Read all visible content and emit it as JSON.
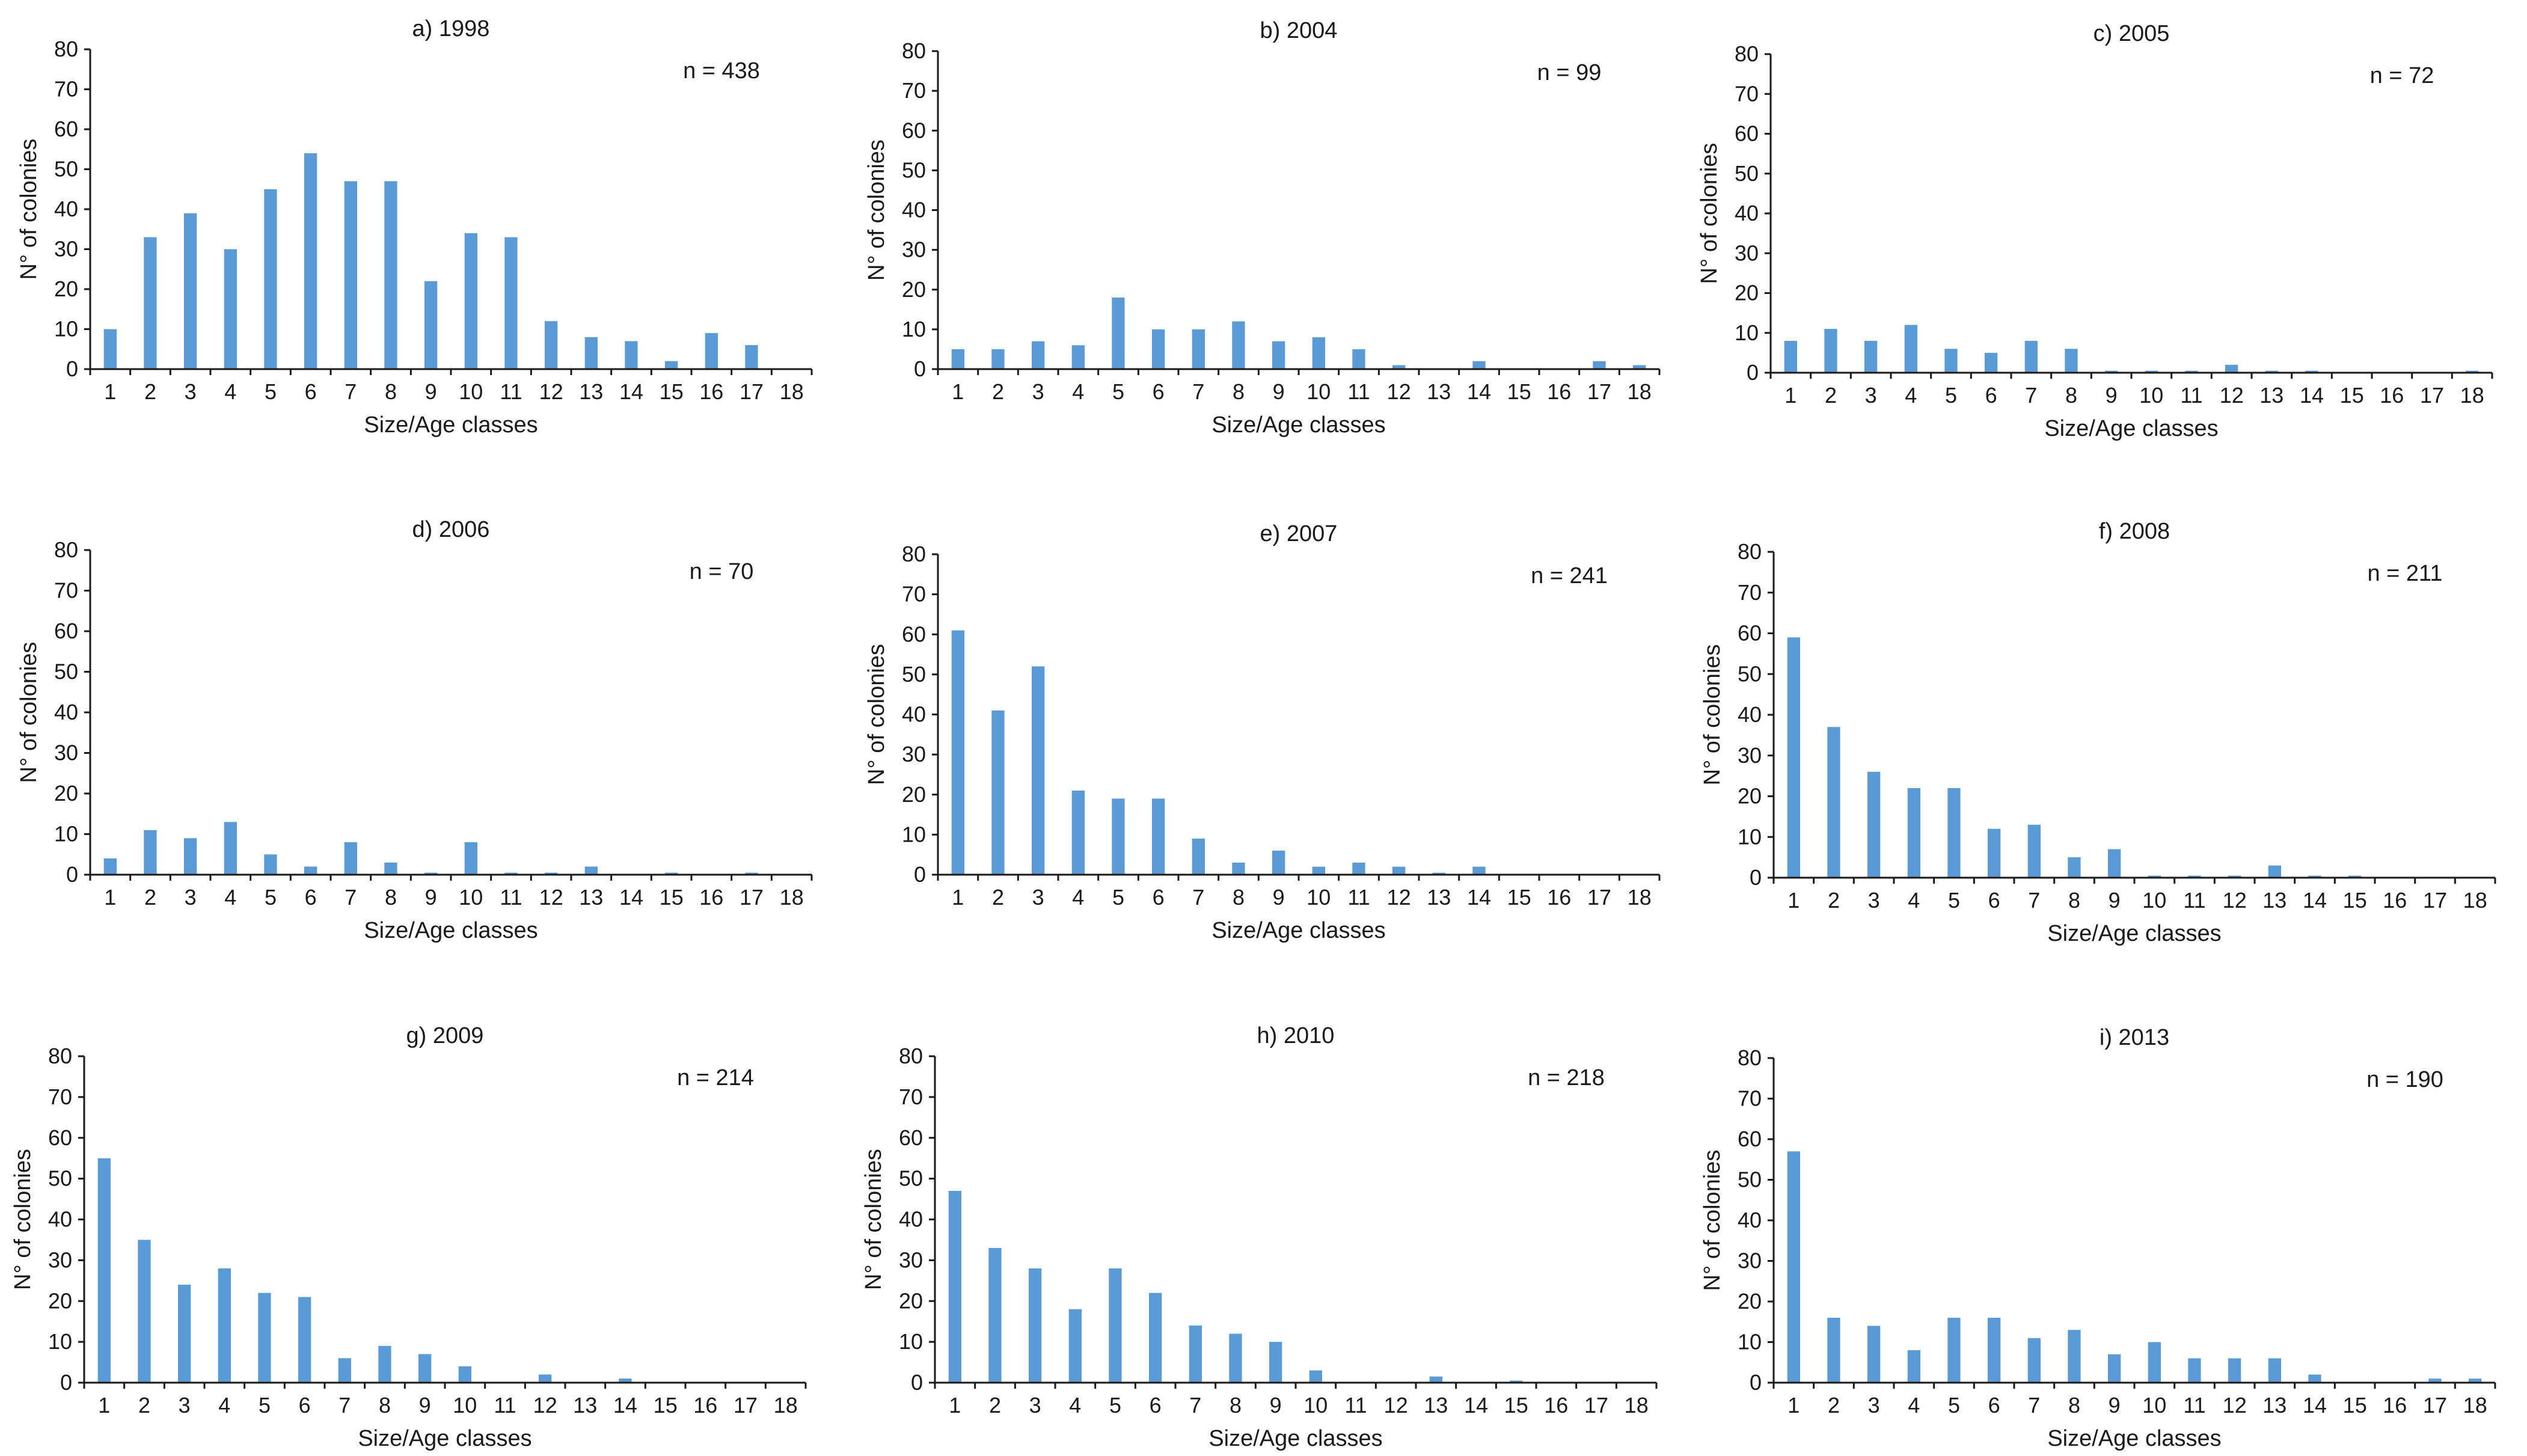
{
  "chart_data": [
    {
      "type": "bar",
      "title": "a) 1998",
      "annotation": "n = 438",
      "xlabel": "Size/Age classes",
      "ylabel": "N° of colonies",
      "ylim": [
        0,
        80
      ],
      "yticks": [
        "0",
        "10",
        "20",
        "30",
        "40",
        "50",
        "60",
        "70",
        "80"
      ],
      "categories": [
        "1",
        "2",
        "3",
        "4",
        "5",
        "6",
        "7",
        "8",
        "9",
        "10",
        "11",
        "12",
        "13",
        "14",
        "15",
        "16",
        "17",
        "18"
      ],
      "values": [
        10,
        33,
        39,
        30,
        45,
        54,
        47,
        47,
        22,
        34,
        33,
        12,
        8,
        7,
        2,
        9,
        6,
        0
      ]
    },
    {
      "type": "bar",
      "title": "b) 2004",
      "annotation": "n = 99",
      "xlabel": "Size/Age classes",
      "ylabel": "N° of colonies",
      "ylim": [
        0,
        80
      ],
      "yticks": [
        "0",
        "10",
        "20",
        "30",
        "40",
        "50",
        "60",
        "70",
        "80"
      ],
      "categories": [
        "1",
        "2",
        "3",
        "4",
        "5",
        "6",
        "7",
        "8",
        "9",
        "10",
        "11",
        "12",
        "13",
        "14",
        "15",
        "16",
        "17",
        "18"
      ],
      "values": [
        5,
        5,
        7,
        6,
        18,
        10,
        10,
        12,
        7,
        8,
        5,
        1,
        0,
        2,
        0,
        0,
        2,
        1
      ]
    },
    {
      "type": "bar",
      "title": "c) 2005",
      "annotation": "n = 72",
      "xlabel": "Size/Age classes",
      "ylabel": "N° of colonies",
      "ylim": [
        0,
        80
      ],
      "yticks": [
        "0",
        "10",
        "20",
        "30",
        "40",
        "50",
        "60",
        "70",
        "80"
      ],
      "categories": [
        "1",
        "2",
        "3",
        "4",
        "5",
        "6",
        "7",
        "8",
        "9",
        "10",
        "11",
        "12",
        "13",
        "14",
        "15",
        "16",
        "17",
        "18"
      ],
      "values": [
        8,
        11,
        8,
        12,
        6,
        5,
        8,
        6,
        0.5,
        0.5,
        0.5,
        2,
        0.5,
        0.5,
        0,
        0,
        0,
        0.5
      ]
    },
    {
      "type": "bar",
      "title": "d) 2006",
      "annotation": "n = 70",
      "xlabel": "Size/Age classes",
      "ylabel": "N° of colonies",
      "ylim": [
        0,
        80
      ],
      "yticks": [
        "0",
        "10",
        "20",
        "30",
        "40",
        "50",
        "60",
        "70",
        "80"
      ],
      "categories": [
        "1",
        "2",
        "3",
        "4",
        "5",
        "6",
        "7",
        "8",
        "9",
        "10",
        "11",
        "12",
        "13",
        "14",
        "15",
        "16",
        "17",
        "18"
      ],
      "values": [
        4,
        11,
        9,
        13,
        5,
        2,
        8,
        3,
        0.5,
        8,
        0.5,
        0.5,
        2,
        0,
        0.5,
        0,
        0.5,
        0
      ]
    },
    {
      "type": "bar",
      "title": "e) 2007",
      "annotation": "n = 241",
      "xlabel": "Size/Age classes",
      "ylabel": "N° of colonies",
      "ylim": [
        0,
        80
      ],
      "yticks": [
        "0",
        "10",
        "20",
        "30",
        "40",
        "50",
        "60",
        "70",
        "80"
      ],
      "categories": [
        "1",
        "2",
        "3",
        "4",
        "5",
        "6",
        "7",
        "8",
        "9",
        "10",
        "11",
        "12",
        "13",
        "14",
        "15",
        "16",
        "17",
        "18"
      ],
      "values": [
        61,
        41,
        52,
        21,
        19,
        19,
        9,
        3,
        6,
        2,
        3,
        2,
        0.5,
        2,
        0,
        0,
        0,
        0
      ]
    },
    {
      "type": "bar",
      "title": "f) 2008",
      "annotation": "n = 211",
      "xlabel": "Size/Age classes",
      "ylabel": "N° of colonies",
      "ylim": [
        0,
        80
      ],
      "yticks": [
        "0",
        "10",
        "20",
        "30",
        "40",
        "50",
        "60",
        "70",
        "80"
      ],
      "categories": [
        "1",
        "2",
        "3",
        "4",
        "5",
        "6",
        "7",
        "8",
        "9",
        "10",
        "11",
        "12",
        "13",
        "14",
        "15",
        "16",
        "17",
        "18"
      ],
      "values": [
        59,
        37,
        26,
        22,
        22,
        12,
        13,
        5,
        7,
        0.5,
        0.5,
        0.5,
        3,
        0.5,
        0.5,
        0,
        0,
        0
      ]
    },
    {
      "type": "bar",
      "title": "g) 2009",
      "annotation": "n = 214",
      "xlabel": "Size/Age classes",
      "ylabel": "N° of colonies",
      "ylim": [
        0,
        80
      ],
      "yticks": [
        "0",
        "10",
        "20",
        "30",
        "40",
        "50",
        "60",
        "70",
        "80"
      ],
      "categories": [
        "1",
        "2",
        "3",
        "4",
        "5",
        "6",
        "7",
        "8",
        "9",
        "10",
        "11",
        "12",
        "13",
        "14",
        "15",
        "16",
        "17",
        "18"
      ],
      "values": [
        55,
        35,
        24,
        28,
        22,
        21,
        6,
        9,
        7,
        4,
        0,
        2,
        0,
        1,
        0,
        0,
        0,
        0
      ]
    },
    {
      "type": "bar",
      "title": "h) 2010",
      "annotation": "n = 218",
      "xlabel": "Size/Age classes",
      "ylabel": "N° of colonies",
      "ylim": [
        0,
        80
      ],
      "yticks": [
        "0",
        "10",
        "20",
        "30",
        "40",
        "50",
        "60",
        "70",
        "80"
      ],
      "categories": [
        "1",
        "2",
        "3",
        "4",
        "5",
        "6",
        "7",
        "8",
        "9",
        "10",
        "11",
        "12",
        "13",
        "14",
        "15",
        "16",
        "17",
        "18"
      ],
      "values": [
        47,
        33,
        28,
        18,
        28,
        22,
        14,
        12,
        10,
        3,
        0,
        0,
        1.5,
        0,
        0.5,
        0,
        0,
        0
      ]
    },
    {
      "type": "bar",
      "title": "i) 2013",
      "annotation": "n = 190",
      "xlabel": "Size/Age classes",
      "ylabel": "N° of colonies",
      "ylim": [
        0,
        80
      ],
      "yticks": [
        "0",
        "10",
        "20",
        "30",
        "40",
        "50",
        "60",
        "70",
        "80"
      ],
      "categories": [
        "1",
        "2",
        "3",
        "4",
        "5",
        "6",
        "7",
        "8",
        "9",
        "10",
        "11",
        "12",
        "13",
        "14",
        "15",
        "16",
        "17",
        "18"
      ],
      "values": [
        57,
        16,
        14,
        8,
        16,
        16,
        11,
        13,
        7,
        10,
        6,
        6,
        6,
        2,
        0,
        0,
        1,
        1
      ]
    }
  ]
}
